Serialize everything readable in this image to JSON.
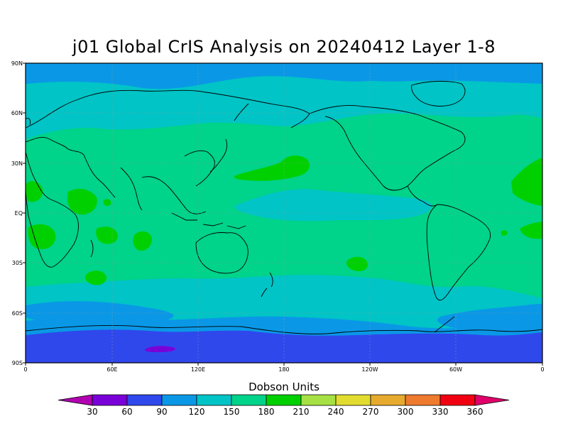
{
  "title": "j01 Global CrIS Analysis on 20240412 Layer 1-8",
  "units_label": "Dobson Units",
  "y_axis_labels": [
    "90N",
    "60N",
    "30N",
    "EQ",
    "30S",
    "60S",
    "90S"
  ],
  "x_axis_labels": [
    "0",
    "60E",
    "120E",
    "180",
    "120W",
    "60W",
    "0"
  ],
  "colorbar": {
    "labels": [
      "30",
      "60",
      "90",
      "120",
      "150",
      "180",
      "210",
      "240",
      "270",
      "300",
      "330",
      "360"
    ],
    "colors": [
      "#b000b0",
      "#7a00d8",
      "#2f48ec",
      "#0a98e6",
      "#00c4c6",
      "#00d38a",
      "#00d000",
      "#a6e044",
      "#e2dc30",
      "#e6aa2e",
      "#ee7a2e",
      "#f00010",
      "#e0006a"
    ]
  },
  "colors": {
    "ocean_band_polar_south": "#2f48ec",
    "band_90_120": "#0a98e6",
    "band_120_150": "#00c4c6",
    "band_150_180": "#00d38a",
    "band_180_210": "#00d000"
  }
}
